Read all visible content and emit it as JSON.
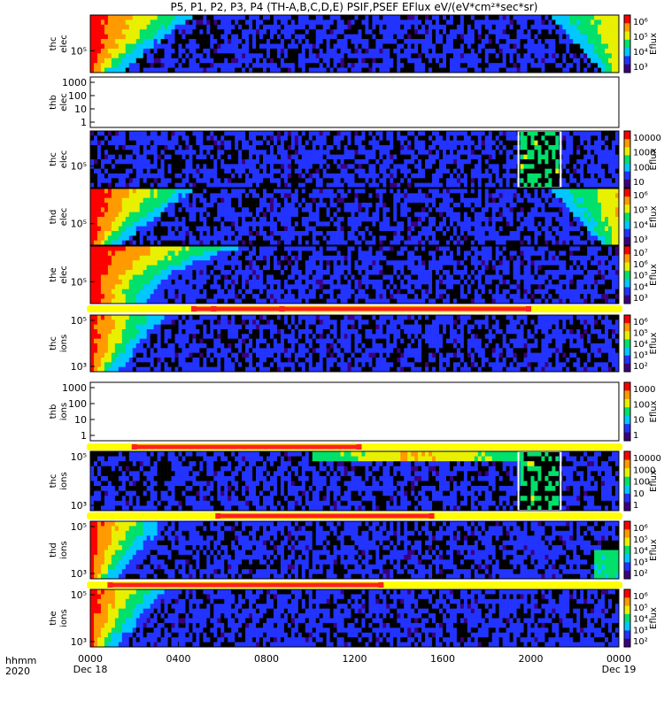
{
  "chart_data": {
    "type": "heatmap",
    "title": "P5, P1, P2, P3, P4 (TH-A,B,C,D,E) PSIF,PSEF EFlux eV/(eV*cm²*sec*sr)",
    "x_axis": {
      "label_line1": "hhmm",
      "label_line2": "2020",
      "ticks": [
        "0000",
        "0400",
        "0800",
        "1200",
        "1600",
        "2000",
        "0000"
      ],
      "dates": [
        "Dec 18",
        "Dec 19"
      ],
      "range_hours": [
        0,
        24
      ]
    },
    "colormap": [
      "#3b0080",
      "#2233ff",
      "#00c8ff",
      "#00e06a",
      "#e8f000",
      "#ff9a00",
      "#ff0000"
    ],
    "bar_color": "#ff2020",
    "track_color": "#ffff00",
    "panels": [
      {
        "line1": "thc",
        "line2": "elec",
        "y_ticks": [
          "10⁵"
        ],
        "cbar_ticks": [
          "10⁶",
          "10⁵",
          "10⁴",
          "10³"
        ],
        "cbar_label": "Eflux",
        "data": true,
        "profile": "elec_edges"
      },
      {
        "line1": "thb",
        "line2": "elec",
        "y_ticks": [
          "1000",
          "100",
          "10",
          "1"
        ],
        "cbar_ticks": [],
        "cbar_label": "",
        "data": false
      },
      {
        "line1": "thc",
        "line2": "elec",
        "y_ticks": [
          "10⁵"
        ],
        "cbar_ticks": [
          "10000",
          "1000",
          "100",
          "10"
        ],
        "cbar_label": "Eflux",
        "data": true,
        "profile": "noise_block"
      },
      {
        "line1": "thd",
        "line2": "elec",
        "y_ticks": [
          "10⁵"
        ],
        "cbar_ticks": [
          "10⁶",
          "10⁵",
          "10⁴",
          "10³"
        ],
        "cbar_label": "Eflux",
        "data": true,
        "profile": "elec_edges"
      },
      {
        "line1": "the",
        "line2": "elec",
        "y_ticks": [
          "10⁵"
        ],
        "cbar_ticks": [
          "10⁷",
          "10⁶",
          "10⁵",
          "10⁴",
          "10³"
        ],
        "cbar_label": "Eflux",
        "data": true,
        "profile": "elec_left"
      },
      {
        "line1": "thc",
        "line2": "ions",
        "y_ticks": [
          "10⁵",
          "10³"
        ],
        "cbar_ticks": [
          "10⁶",
          "10⁵",
          "10⁴",
          "10³",
          "10²"
        ],
        "cbar_label": "Eflux",
        "data": true,
        "profile": "ion_left"
      },
      {
        "line1": "thb",
        "line2": "ions",
        "y_ticks": [
          "1000",
          "100",
          "10",
          "1"
        ],
        "cbar_ticks": [
          "1000",
          "100",
          "10",
          "1"
        ],
        "cbar_label": "Eflux",
        "data": false
      },
      {
        "line1": "thc",
        "line2": "ions",
        "y_ticks": [
          "10⁵",
          "10³"
        ],
        "cbar_ticks": [
          "10000",
          "1000",
          "100",
          "10",
          "1"
        ],
        "cbar_label": "Eflux",
        "data": true,
        "profile": "ion_block"
      },
      {
        "line1": "thd",
        "line2": "ions",
        "y_ticks": [
          "10⁵",
          "10³"
        ],
        "cbar_ticks": [
          "10⁶",
          "10⁵",
          "10⁴",
          "10³",
          "10²"
        ],
        "cbar_label": "Eflux",
        "data": true,
        "profile": "ion_edges"
      },
      {
        "line1": "the",
        "line2": "ions",
        "y_ticks": [
          "10⁵",
          "10³"
        ],
        "cbar_ticks": [
          "10⁶",
          "10⁵",
          "10⁴",
          "10³",
          "10²"
        ],
        "cbar_label": "Eflux",
        "data": true,
        "profile": "ion_left"
      }
    ],
    "mode_bars": [
      {
        "after_panel": 4,
        "segments": [
          [
            4.7,
            5.6
          ],
          [
            5.6,
            8.7
          ],
          [
            8.7,
            19.9
          ]
        ]
      },
      {
        "after_panel": 6,
        "segments": [
          [
            2.0,
            12.2
          ]
        ]
      },
      {
        "after_panel": 7,
        "segments": [
          [
            5.8,
            15.5
          ]
        ]
      },
      {
        "after_panel": 8,
        "segments": [
          [
            0.9,
            13.2
          ]
        ]
      }
    ]
  }
}
